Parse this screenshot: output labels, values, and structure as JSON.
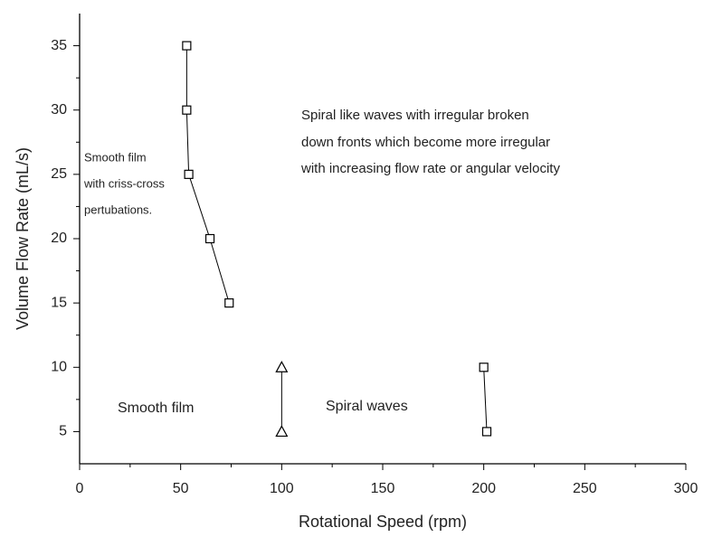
{
  "chart_data": {
    "type": "line",
    "xlabel": "Rotational Speed (rpm)",
    "ylabel": "Volume Flow Rate (mL/s)",
    "xlim": [
      0,
      300
    ],
    "xticks": [
      0,
      50,
      100,
      150,
      200,
      250,
      300
    ],
    "ylim": [
      2.5,
      37.5
    ],
    "yticks": [
      5,
      10,
      15,
      20,
      25,
      30,
      35
    ],
    "series": [
      {
        "marker": "square",
        "color": "#000000",
        "x": [
          53,
          53,
          54,
          64.5,
          74
        ],
        "values": [
          35,
          30,
          25,
          20,
          15
        ]
      },
      {
        "marker": "triangle",
        "color": "#000000",
        "x": [
          100,
          100
        ],
        "values": [
          10,
          5
        ]
      },
      {
        "marker": "square",
        "color": "#000000",
        "x": [
          200,
          201.5
        ],
        "values": [
          10,
          5
        ]
      }
    ],
    "annotations": [
      [
        "Smooth film",
        "with criss-cross",
        "pertubations."
      ],
      [
        "Spiral like waves with irregular broken",
        "down fronts which become more irregular",
        "with increasing flow rate or angular velocity"
      ],
      [
        "Smooth film"
      ],
      [
        "Spiral waves"
      ]
    ]
  }
}
